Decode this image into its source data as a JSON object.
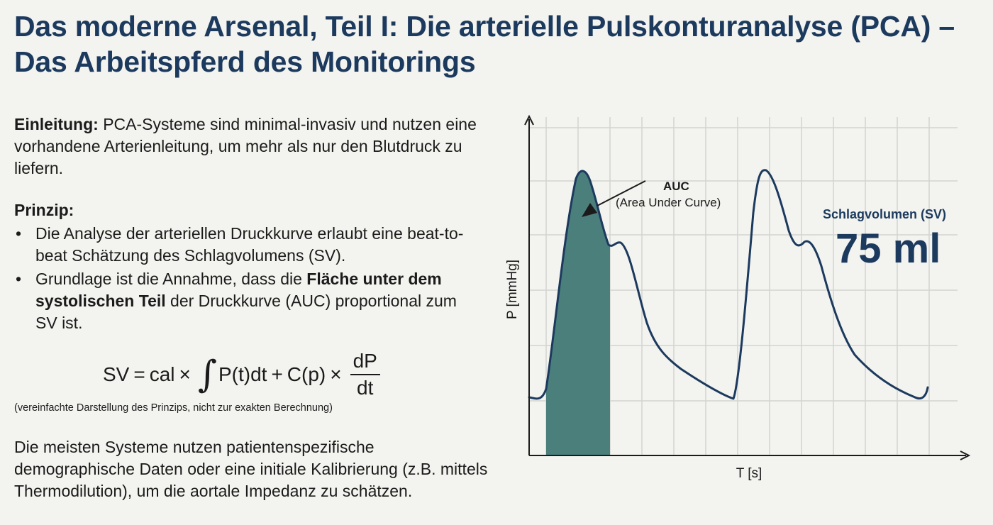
{
  "title": "Das moderne Arsenal, Teil I: Die arterielle Pulskonturanalyse (PCA) – Das Arbeitspferd des Monitorings",
  "intro": {
    "label": "Einleitung:",
    "text": " PCA-Systeme sind minimal-invasiv und nutzen eine vorhandene Arterienleitung, um mehr als nur den Blutdruck zu liefern."
  },
  "principle": {
    "heading": "Prinzip:",
    "bullet1": "Die Analyse der arteriellen Druckkurve erlaubt eine beat-to-beat Schätzung des Schlagvolumens (SV).",
    "bullet2_pre": "Grundlage ist die Annahme, dass die ",
    "bullet2_bold": "Fläche unter dem systolischen Teil",
    "bullet2_post": " der Druckkurve (AUC) proportional zum SV ist."
  },
  "formula": {
    "lhs": "SV",
    "eq": "=",
    "cal": "cal",
    "times1": "×",
    "integral": "∫",
    "integrand": "P(t)dt",
    "plus": "+",
    "cp": "C(p)",
    "times2": "×",
    "num": "dP",
    "den": "dt"
  },
  "formula_note": "(vereinfachte Darstellung des Prinzips, nicht zur exakten Berechnung)",
  "outro": "Die meisten Systeme nutzen patientenspezifische demographische Daten oder eine initiale Kalibrierung (z.B. mittels Thermodilution), um die aortale Impedanz zu schätzen.",
  "diagram": {
    "ylabel": "P [mmHg]",
    "xlabel": "T [s]",
    "auc_title": "AUC",
    "auc_sub": "(Area Under Curve)",
    "sv_label": "Schlagvolumen (SV)",
    "sv_value": "75 ml",
    "colors": {
      "curve": "#1c3a5e",
      "auc_fill": "#4a7f7c",
      "grid": "#d3d3cf",
      "axis": "#1b1b1b",
      "title": "#1c3a5e"
    }
  }
}
